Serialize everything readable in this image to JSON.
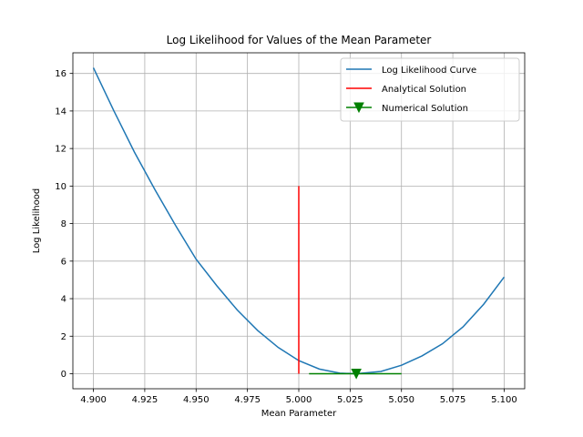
{
  "chart_data": {
    "type": "line",
    "title": "Log Likelihood for Values of the Mean Parameter",
    "xlabel": "Mean Parameter",
    "ylabel": "Log Likelihood",
    "xlim": [
      4.89,
      5.11
    ],
    "ylim": [
      -0.8,
      17.1
    ],
    "grid": true,
    "legend_position": "top-right",
    "x_ticks": [
      4.9,
      4.925,
      4.95,
      4.975,
      5.0,
      5.025,
      5.05,
      5.075,
      5.1
    ],
    "x_tick_labels": [
      "4.900",
      "4.925",
      "4.950",
      "4.975",
      "5.000",
      "5.025",
      "5.050",
      "5.075",
      "5.100"
    ],
    "y_ticks": [
      0,
      2,
      4,
      6,
      8,
      10,
      12,
      14,
      16
    ],
    "y_tick_labels": [
      "0",
      "2",
      "4",
      "6",
      "8",
      "10",
      "12",
      "14",
      "16"
    ],
    "series": [
      {
        "name": "Log Likelihood Curve",
        "color": "#1f77b4",
        "x": [
          4.9,
          4.91,
          4.92,
          4.93,
          4.94,
          4.95,
          4.96,
          4.97,
          4.98,
          4.99,
          5.0,
          5.01,
          5.02,
          5.028,
          5.04,
          5.05,
          5.06,
          5.07,
          5.08,
          5.09,
          5.1
        ],
        "y": [
          16.3,
          14.0,
          11.8,
          9.8,
          7.9,
          6.1,
          4.7,
          3.4,
          2.3,
          1.4,
          0.7,
          0.25,
          0.03,
          0.0,
          0.12,
          0.45,
          0.95,
          1.6,
          2.5,
          3.7,
          5.15
        ]
      },
      {
        "name": "Analytical Solution",
        "color": "#ff0000",
        "x": [
          5.0,
          5.0
        ],
        "y": [
          0,
          10
        ]
      },
      {
        "name": "Numerical Solution",
        "color": "#008000",
        "x": [
          5.005,
          5.05
        ],
        "y": [
          0,
          0
        ],
        "marker": {
          "x": 5.028,
          "y": 0,
          "shape": "triangle-down"
        }
      }
    ]
  }
}
